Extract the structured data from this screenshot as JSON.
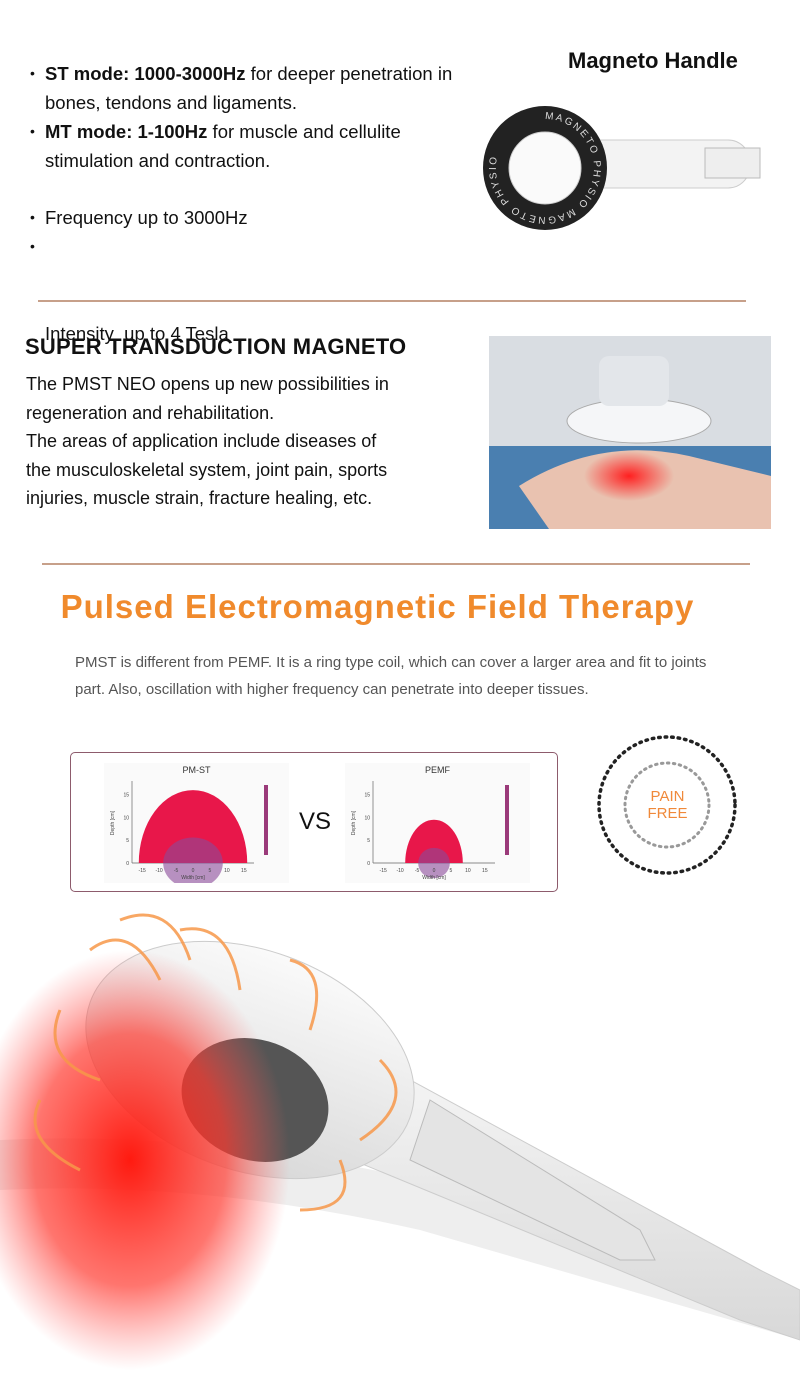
{
  "features": {
    "items": [
      {
        "bold": "ST mode: 1000-3000Hz",
        "text": " for deeper penetration in bones, tendons and ligaments."
      },
      {
        "bold": "MT mode: 1-100Hz",
        "text": " for muscle and cellulite stimulation and contraction."
      },
      {
        "bold": "",
        "text": "Frequency up to 3000Hz"
      },
      {
        "bold": "",
        "text": "Intensity  up to 4 Tesla"
      }
    ],
    "bullet": "•"
  },
  "handle": {
    "title": "Magneto Handle",
    "ring_text": "MAGNETO PHYSIO MAGNETO PHYSIO"
  },
  "transduction": {
    "title": "SUPER TRANSDUCTION MAGNETO",
    "lines": [
      "The PMST NEO opens up new possibilities in",
      "regeneration and rehabilitation.",
      "The areas of application include diseases of",
      "the musculoskeletal system, joint pain, sports",
      "injuries, muscle strain, fracture healing, etc."
    ]
  },
  "pemf": {
    "title": "Pulsed Electromagnetic Field Therapy",
    "description": "PMST is different from PEMF. It is a ring type coil, which can cover a larger area and fit to joints part. Also, oscillation with higher frequency can penetrate into deeper tissues."
  },
  "comparison": {
    "vs": "VS",
    "charts": [
      {
        "title": "PM-ST",
        "xlabel": "Width [cm]",
        "ylabel": "Depth [cm]",
        "x_ticks": [
          "-15",
          "-10",
          "-5",
          "0",
          "5",
          "10",
          "15"
        ],
        "y_ticks": [
          "0",
          "5",
          "10",
          "15"
        ],
        "field_width_cm": 16,
        "field_depth_cm": 16
      },
      {
        "title": "PEMF",
        "xlabel": "Width [cm]",
        "ylabel": "Depth [cm]",
        "x_ticks": [
          "-15",
          "-10",
          "-5",
          "0",
          "5",
          "10",
          "15"
        ],
        "y_ticks": [
          "0",
          "5",
          "10",
          "15"
        ],
        "field_width_cm": 8.5,
        "field_depth_cm": 9.5
      }
    ]
  },
  "badge": {
    "line1": "PAIN",
    "line2": "FREE"
  },
  "colors": {
    "accent": "#f08a2c",
    "rule": "#c7a08a",
    "field": "#e8174a",
    "core": "#8a4a9a"
  }
}
